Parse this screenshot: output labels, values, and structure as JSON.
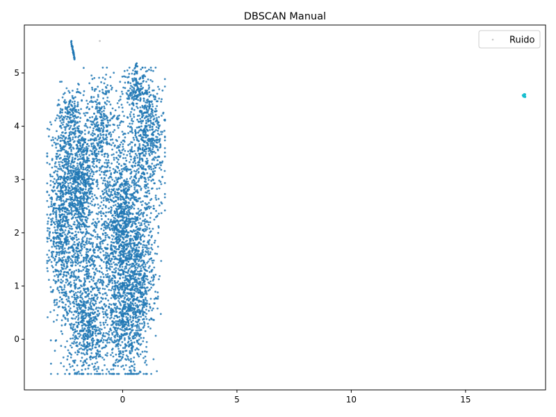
{
  "chart_data": {
    "type": "scatter",
    "title": "DBSCAN Manual",
    "xlabel": "",
    "ylabel": "",
    "xlim": [
      -4.3,
      18.5
    ],
    "ylim": [
      -0.95,
      5.9
    ],
    "xticks": [
      0,
      5,
      10,
      15
    ],
    "xtick_labels": [
      "0",
      "5",
      "10",
      "15"
    ],
    "yticks": [
      0,
      1,
      2,
      3,
      4,
      5
    ],
    "ytick_labels": [
      "0",
      "1",
      "2",
      "3",
      "4",
      "5"
    ],
    "grid": false,
    "legend": {
      "placement": "top-right",
      "entries": [
        "Ruido"
      ]
    },
    "series": [
      {
        "cluster": 0,
        "color": "#1f77b4",
        "approx_point_count": 6000,
        "regions": [
          {
            "x_range": [
              -3.3,
              1.9
            ],
            "y_range": [
              -0.7,
              5.2
            ],
            "note": "main dense body"
          },
          {
            "x_range": [
              -2.3,
              -2.1
            ],
            "y_range": [
              5.2,
              5.6
            ],
            "note": "thin spur at top-left"
          }
        ],
        "sample_points": [
          [
            -3.0,
            2.5
          ],
          [
            -2.5,
            1.2
          ],
          [
            -2.0,
            3.0
          ],
          [
            -1.5,
            0.0
          ],
          [
            -1.0,
            2.0
          ],
          [
            -0.5,
            -0.3
          ],
          [
            0.0,
            2.2
          ],
          [
            0.3,
            1.5
          ],
          [
            0.5,
            -0.5
          ],
          [
            0.8,
            4.8
          ],
          [
            1.0,
            1.0
          ],
          [
            1.5,
            4.0
          ],
          [
            -2.2,
            5.5
          ],
          [
            0.6,
            5.15
          ]
        ]
      },
      {
        "cluster": 1,
        "color": "#17becf",
        "approx_point_count": 15,
        "points": [
          [
            17.55,
            4.58
          ],
          [
            17.58,
            4.56
          ],
          [
            17.6,
            4.55
          ],
          [
            17.57,
            4.6
          ],
          [
            17.53,
            4.57
          ]
        ]
      },
      {
        "name": "Ruido",
        "color": "#c7c7c7",
        "points": [
          [
            -1.0,
            5.6
          ]
        ]
      }
    ]
  }
}
